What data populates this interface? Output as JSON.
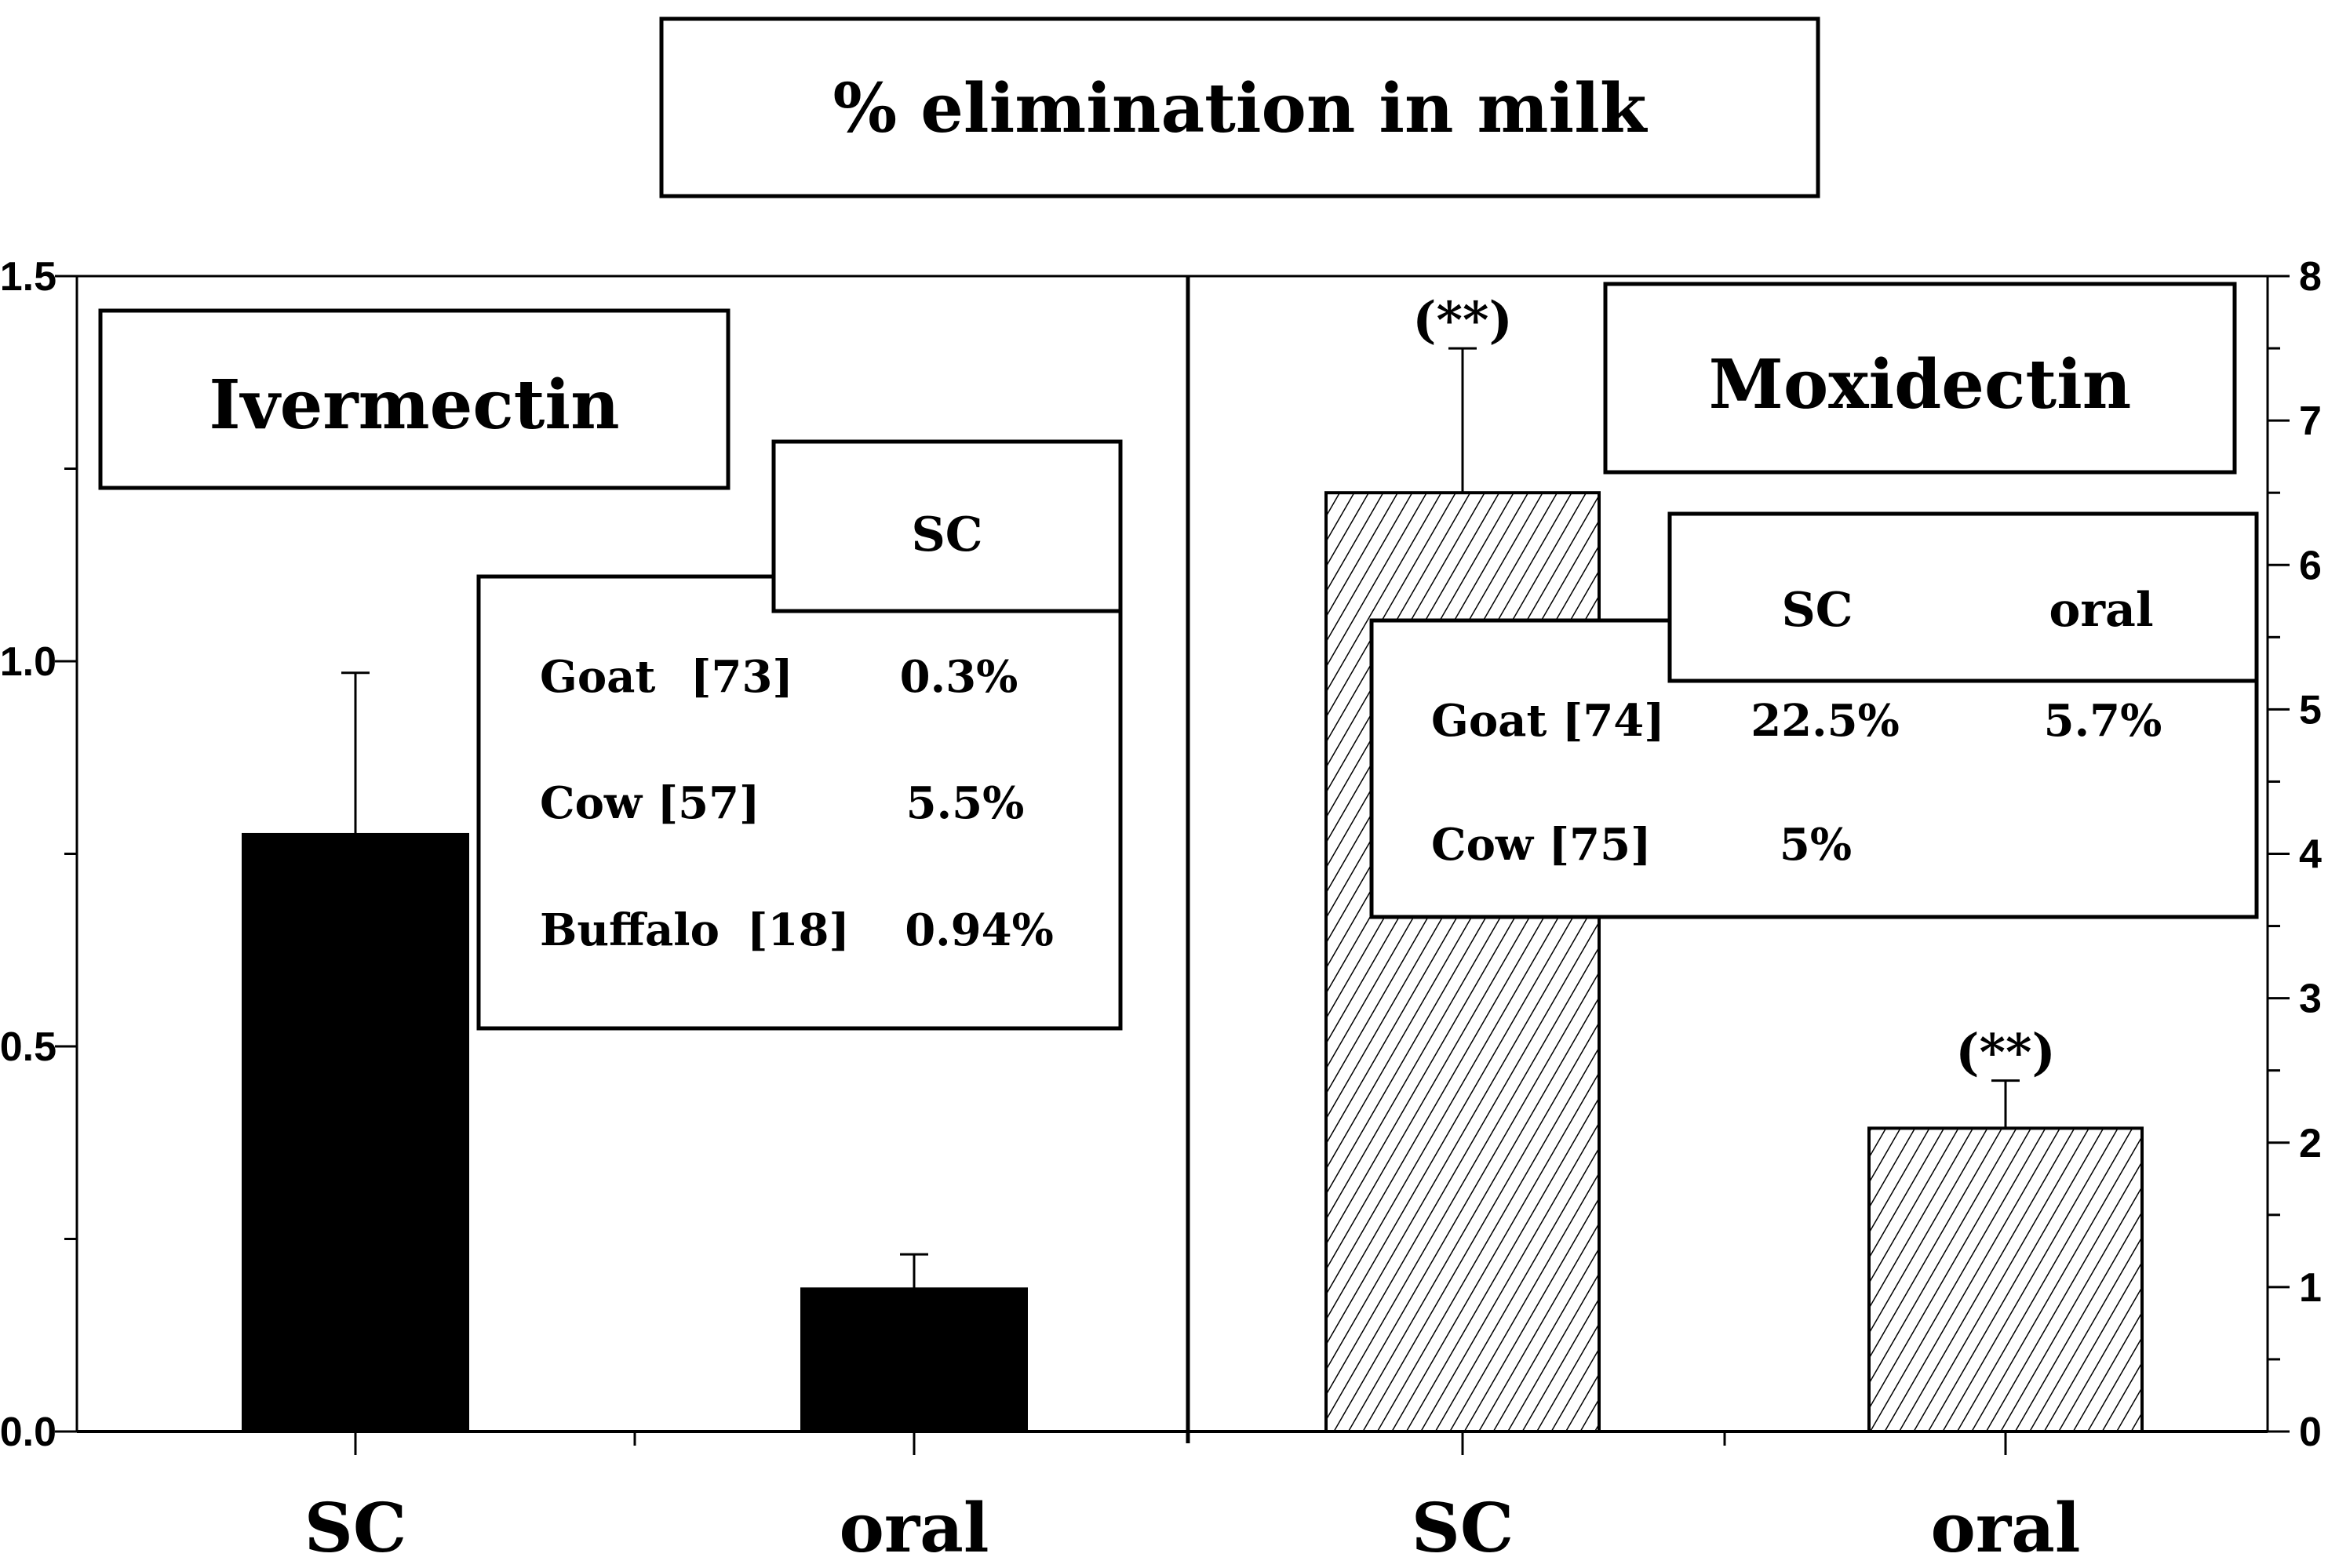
{
  "chart_data": {
    "type": "bar",
    "title": "% elimination in milk",
    "panels": [
      {
        "name": "Ivermectin",
        "categories": [
          "SC",
          "oral"
        ],
        "values": [
          0.775,
          0.185
        ],
        "errors": [
          0.21,
          0.045
        ],
        "error_labels": [
          "",
          ""
        ],
        "fill": "solid",
        "axis": "left",
        "ylim": [
          0.0,
          1.5
        ],
        "yticks": [
          "0.0",
          "0.5",
          "1.0",
          "1.5"
        ],
        "ytick_values": [
          0.0,
          0.5,
          1.0,
          1.5
        ],
        "table": {
          "headers": [
            "SC"
          ],
          "rows": [
            {
              "label": "Goat",
              "ref": "[73]",
              "values": [
                "0.3%"
              ]
            },
            {
              "label": "Cow [57]",
              "ref": "",
              "values": [
                "5.5%"
              ]
            },
            {
              "label": "Buffalo",
              "ref": "[18]",
              "values": [
                "0.94%"
              ]
            }
          ]
        }
      },
      {
        "name": "Moxidectin",
        "categories": [
          "SC",
          "oral"
        ],
        "values": [
          6.5,
          2.1
        ],
        "errors": [
          1.0,
          0.33
        ],
        "error_labels": [
          "(**)",
          "(**)"
        ],
        "fill": "hatched",
        "axis": "right",
        "ylim": [
          0,
          8
        ],
        "yticks": [
          "0",
          "1",
          "2",
          "3",
          "4",
          "5",
          "6",
          "7",
          "8"
        ],
        "ytick_values": [
          0,
          1,
          2,
          3,
          4,
          5,
          6,
          7,
          8
        ],
        "table": {
          "headers": [
            "SC",
            "oral"
          ],
          "rows": [
            {
              "label": "Goat [74]",
              "ref": "",
              "values": [
                "22.5%",
                "5.7%"
              ]
            },
            {
              "label": "Cow [75]",
              "ref": "",
              "values": [
                "5%",
                ""
              ]
            }
          ]
        }
      }
    ]
  },
  "colors": {
    "ink": "#000000",
    "background": "#ffffff"
  }
}
